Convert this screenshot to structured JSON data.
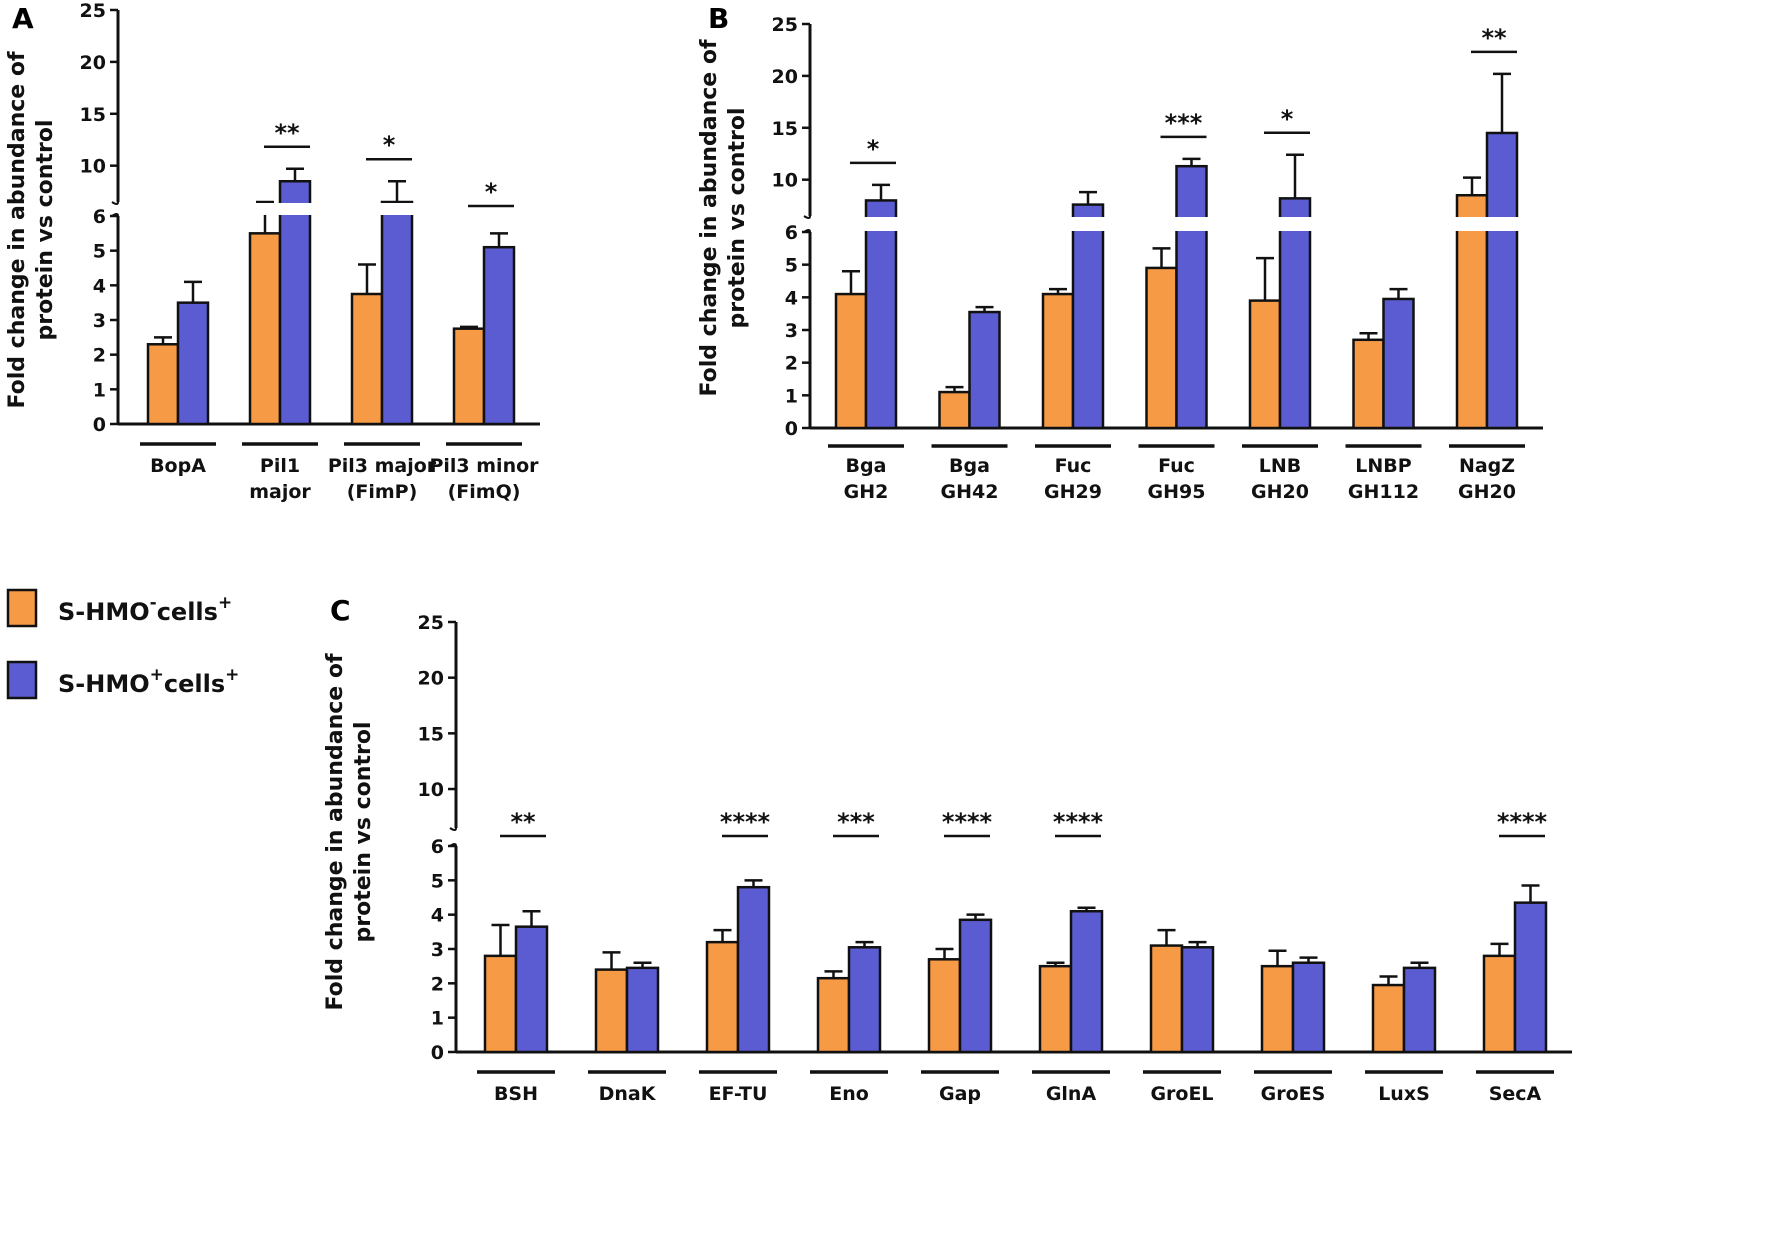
{
  "colors": {
    "orange": "#F79A46",
    "blue": "#5B5CD1",
    "axis": "#111111"
  },
  "legend": [
    {
      "label": "S-HMO",
      "sup1": "-",
      "tail": "cells",
      "sup2": "+",
      "color": "#F79A46"
    },
    {
      "label": "S-HMO",
      "sup1": "+",
      "tail": "cells",
      "sup2": "+",
      "color": "#5B5CD1"
    }
  ],
  "chart_data": [
    {
      "type": "bar",
      "panel": "A",
      "ylabel": [
        "Fold change in abundance of",
        "protein vs control"
      ],
      "series": [
        {
          "name": "S-HMO- cells+",
          "values": [
            2.3,
            5.5,
            3.75,
            2.75
          ],
          "errors": [
            0.2,
            1.0,
            0.85,
            0.05
          ]
        },
        {
          "name": "S-HMO+ cells+",
          "values": [
            3.5,
            8.5,
            6.5,
            5.1
          ],
          "errors": [
            0.6,
            1.2,
            2.0,
            0.4
          ]
        }
      ],
      "categories": [
        [
          "BopA"
        ],
        [
          "Pil1",
          "major"
        ],
        [
          "Pil3 major",
          "(FimP)"
        ],
        [
          "Pil3 minor",
          "(FimQ)"
        ]
      ],
      "significance": [
        "",
        "**",
        "*",
        "*"
      ],
      "lower_ticks": [
        "0",
        "1",
        "2",
        "3",
        "4",
        "5",
        "6"
      ],
      "upper_ticks": [
        "10",
        "15",
        "20",
        "25"
      ],
      "ylim_lower": [
        0,
        6
      ],
      "ylim_upper": [
        6.5,
        25
      ]
    },
    {
      "type": "bar",
      "panel": "B",
      "ylabel": [
        "Fold change in abundance of",
        "protein vs control"
      ],
      "series": [
        {
          "name": "S-HMO- cells+",
          "values": [
            4.1,
            1.1,
            4.1,
            4.9,
            3.9,
            2.7,
            8.5
          ],
          "errors": [
            0.7,
            0.15,
            0.15,
            0.6,
            1.3,
            0.2,
            1.7
          ]
        },
        {
          "name": "S-HMO+ cells+",
          "values": [
            8.0,
            3.55,
            7.6,
            11.3,
            8.2,
            3.95,
            14.5
          ],
          "errors": [
            1.5,
            0.15,
            1.2,
            0.7,
            4.2,
            0.3,
            5.7
          ]
        }
      ],
      "categories": [
        [
          "Bga",
          "GH2"
        ],
        [
          "Bga",
          "GH42"
        ],
        [
          "Fuc",
          "GH29"
        ],
        [
          "Fuc",
          "GH95"
        ],
        [
          "LNB",
          "GH20"
        ],
        [
          "LNBP",
          "GH112"
        ],
        [
          "NagZ",
          "GH20"
        ]
      ],
      "significance": [
        "*",
        "",
        "",
        "***",
        "*",
        "",
        "**"
      ],
      "lower_ticks": [
        "0",
        "1",
        "2",
        "3",
        "4",
        "5",
        "6"
      ],
      "upper_ticks": [
        "10",
        "15",
        "20",
        "25"
      ],
      "ylim_lower": [
        0,
        6
      ],
      "ylim_upper": [
        6.5,
        25
      ]
    },
    {
      "type": "bar",
      "panel": "C",
      "ylabel": [
        "Fold change in abundance of",
        "protein vs control"
      ],
      "series": [
        {
          "name": "S-HMO- cells+",
          "values": [
            2.8,
            2.4,
            3.2,
            2.15,
            2.7,
            2.5,
            3.1,
            2.5,
            1.95,
            2.8
          ],
          "errors": [
            0.9,
            0.5,
            0.35,
            0.2,
            0.3,
            0.1,
            0.45,
            0.45,
            0.25,
            0.35
          ]
        },
        {
          "name": "S-HMO+ cells+",
          "values": [
            3.65,
            2.45,
            4.8,
            3.05,
            3.85,
            4.1,
            3.05,
            2.6,
            2.45,
            4.35
          ],
          "errors": [
            0.45,
            0.15,
            0.2,
            0.15,
            0.15,
            0.1,
            0.15,
            0.15,
            0.15,
            0.5
          ]
        }
      ],
      "categories": [
        [
          "BSH"
        ],
        [
          "DnaK"
        ],
        [
          "EF-TU"
        ],
        [
          "Eno"
        ],
        [
          "Gap"
        ],
        [
          "GlnA"
        ],
        [
          "GroEL"
        ],
        [
          "GroES"
        ],
        [
          "LuxS"
        ],
        [
          "SecA"
        ]
      ],
      "significance": [
        "**",
        "",
        "****",
        "***",
        "****",
        "****",
        "",
        "",
        "",
        "****"
      ],
      "lower_ticks": [
        "0",
        "1",
        "2",
        "3",
        "4",
        "5",
        "6"
      ],
      "upper_ticks": [
        "10",
        "15",
        "20",
        "25"
      ],
      "ylim_lower": [
        0,
        6
      ],
      "ylim_upper": [
        6.5,
        25
      ]
    }
  ]
}
